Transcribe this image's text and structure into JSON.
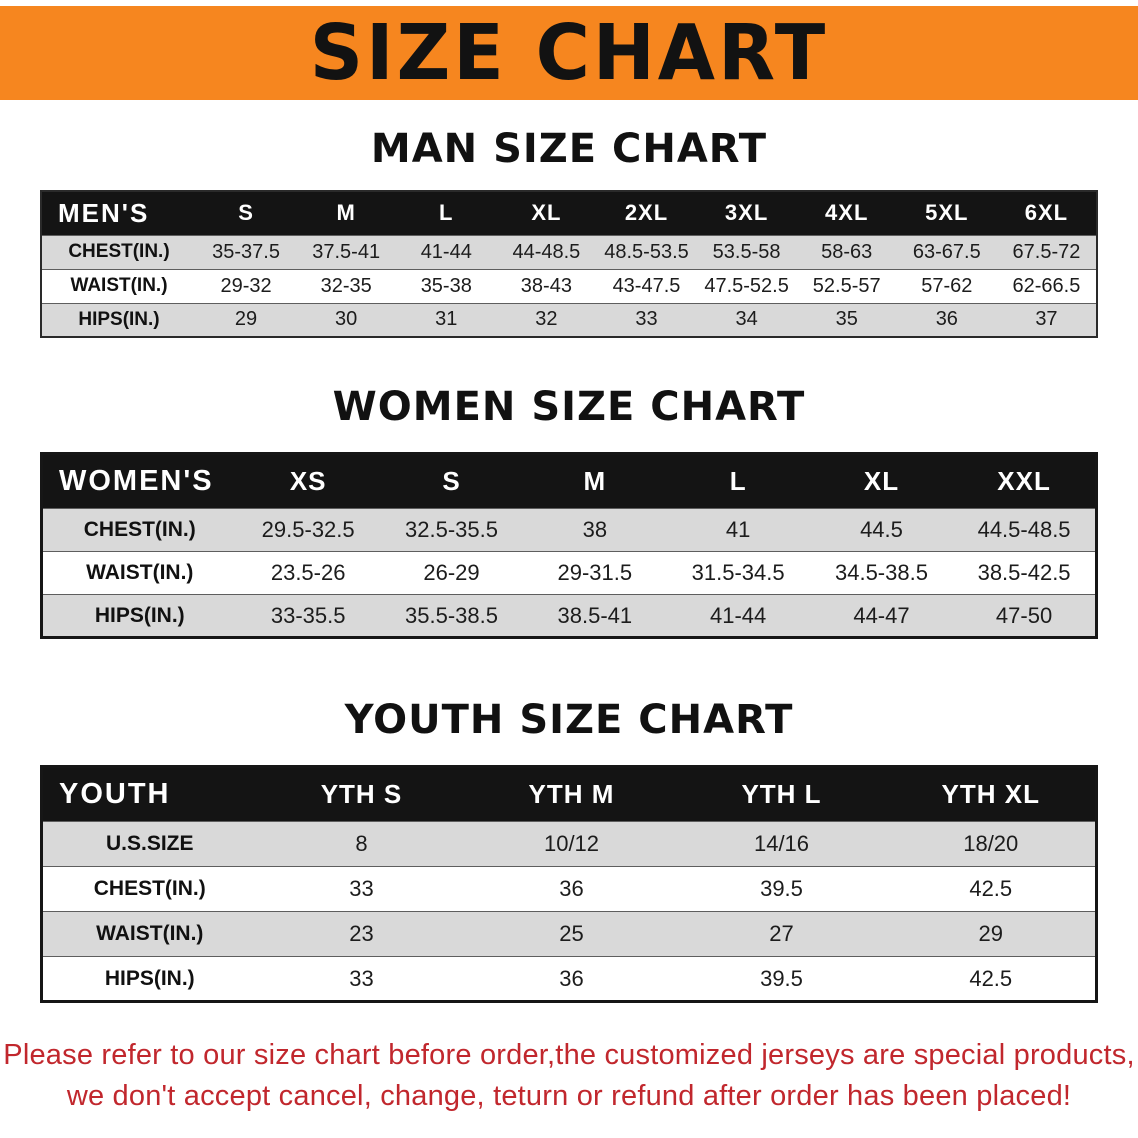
{
  "colors": {
    "banner_bg": "#f6861f",
    "table_header_bg": "#141414",
    "row_alt_bg": "#d9d9d9",
    "disclaimer_color": "#c1272d"
  },
  "banner": {
    "title": "SIZE CHART"
  },
  "men": {
    "heading": "MAN SIZE CHART",
    "table": {
      "header": [
        "MEN'S",
        "S",
        "M",
        "L",
        "XL",
        "2XL",
        "3XL",
        "4XL",
        "5XL",
        "6XL"
      ],
      "rows": [
        [
          "CHEST(IN.)",
          "35-37.5",
          "37.5-41",
          "41-44",
          "44-48.5",
          "48.5-53.5",
          "53.5-58",
          "58-63",
          "63-67.5",
          "67.5-72"
        ],
        [
          "WAIST(IN.)",
          "29-32",
          "32-35",
          "35-38",
          "38-43",
          "43-47.5",
          "47.5-52.5",
          "52.5-57",
          "57-62",
          "62-66.5"
        ],
        [
          "HIPS(IN.)",
          "29",
          "30",
          "31",
          "32",
          "33",
          "34",
          "35",
          "36",
          "37"
        ]
      ]
    }
  },
  "women": {
    "heading": "WOMEN SIZE CHART",
    "table": {
      "header": [
        "WOMEN'S",
        "XS",
        "S",
        "M",
        "L",
        "XL",
        "XXL"
      ],
      "rows": [
        [
          "CHEST(IN.)",
          "29.5-32.5",
          "32.5-35.5",
          "38",
          "41",
          "44.5",
          "44.5-48.5"
        ],
        [
          "WAIST(IN.)",
          "23.5-26",
          "26-29",
          "29-31.5",
          "31.5-34.5",
          "34.5-38.5",
          "38.5-42.5"
        ],
        [
          "HIPS(IN.)",
          "33-35.5",
          "35.5-38.5",
          "38.5-41",
          "41-44",
          "44-47",
          "47-50"
        ]
      ]
    }
  },
  "youth": {
    "heading": "YOUTH SIZE CHART",
    "table": {
      "header": [
        "YOUTH",
        "YTH S",
        "YTH M",
        "YTH L",
        "YTH XL"
      ],
      "rows": [
        [
          "U.S.SIZE",
          "8",
          "10/12",
          "14/16",
          "18/20"
        ],
        [
          "CHEST(IN.)",
          "33",
          "36",
          "39.5",
          "42.5"
        ],
        [
          "WAIST(IN.)",
          "23",
          "25",
          "27",
          "29"
        ],
        [
          "HIPS(IN.)",
          "33",
          "36",
          "39.5",
          "42.5"
        ]
      ]
    }
  },
  "disclaimer": {
    "line1": "Please refer to our size chart before order,the customized jerseys are special products,",
    "line2": "we don't accept cancel, change, teturn or refund after order has been placed!"
  }
}
